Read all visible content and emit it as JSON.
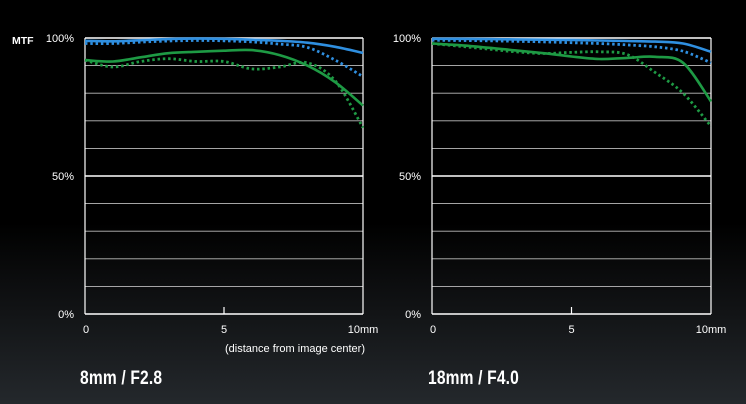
{
  "colors": {
    "sagittal": "#2f8fe0",
    "meridional": "#1e9a44",
    "grid": "#bdbdbd",
    "background": "#000000"
  },
  "chart_data": [
    {
      "type": "line",
      "ylabel": "MTF",
      "xlim": [
        0,
        10
      ],
      "ylim": [
        0,
        100
      ],
      "x_ticks": [
        "0",
        "5",
        "10mm"
      ],
      "y_ticks": [
        "0%",
        "50%",
        "100%"
      ],
      "xlabel": "(distance from image center)",
      "caption": "8mm / F2.8",
      "series": [
        {
          "style": "solid",
          "color": "#2f8fe0",
          "points": [
            [
              0,
              99
            ],
            [
              1,
              98.8
            ],
            [
              2,
              99.2
            ],
            [
              3,
              99.6
            ],
            [
              4,
              99.8
            ],
            [
              5,
              99.7
            ],
            [
              6,
              99.4
            ],
            [
              7,
              99
            ],
            [
              8,
              98.3
            ],
            [
              9,
              96.8
            ],
            [
              10,
              94.6
            ]
          ]
        },
        {
          "style": "dotted",
          "color": "#2f8fe0",
          "points": [
            [
              0,
              98
            ],
            [
              1,
              98
            ],
            [
              2,
              98.5
            ],
            [
              3,
              98.9
            ],
            [
              4,
              99.1
            ],
            [
              5,
              99
            ],
            [
              6,
              98.6
            ],
            [
              7,
              97.8
            ],
            [
              8,
              96.6
            ],
            [
              9,
              92
            ],
            [
              10,
              86
            ]
          ]
        },
        {
          "style": "solid",
          "color": "#1e9a44",
          "points": [
            [
              0,
              92
            ],
            [
              1,
              91.5
            ],
            [
              2,
              93
            ],
            [
              3,
              94.5
            ],
            [
              4,
              95
            ],
            [
              5,
              95.4
            ],
            [
              6,
              95.6
            ],
            [
              7,
              93.8
            ],
            [
              8,
              90
            ],
            [
              9,
              84
            ],
            [
              10,
              75.5
            ]
          ]
        },
        {
          "style": "dotted",
          "color": "#1e9a44",
          "points": [
            [
              0,
              92
            ],
            [
              1,
              89.5
            ],
            [
              2,
              91.5
            ],
            [
              3,
              92.5
            ],
            [
              4,
              91.5
            ],
            [
              5,
              91.5
            ],
            [
              6,
              88.8
            ],
            [
              7,
              89.5
            ],
            [
              8,
              91
            ],
            [
              9,
              84.5
            ],
            [
              10,
              67.5
            ]
          ]
        }
      ]
    },
    {
      "type": "line",
      "xlim": [
        0,
        10
      ],
      "ylim": [
        0,
        100
      ],
      "x_ticks": [
        "0",
        "5",
        "10mm"
      ],
      "y_ticks": [
        "0%",
        "50%",
        "100%"
      ],
      "caption": "18mm / F4.0",
      "series": [
        {
          "style": "solid",
          "color": "#2f8fe0",
          "points": [
            [
              0,
              99.7
            ],
            [
              1,
              99.7
            ],
            [
              2,
              99.6
            ],
            [
              3,
              99.5
            ],
            [
              4,
              99.4
            ],
            [
              5,
              99.3
            ],
            [
              6,
              99.1
            ],
            [
              7,
              98.9
            ],
            [
              8,
              98.7
            ],
            [
              9,
              98
            ],
            [
              10,
              95
            ]
          ]
        },
        {
          "style": "dotted",
          "color": "#2f8fe0",
          "points": [
            [
              0,
              99.2
            ],
            [
              1,
              99.1
            ],
            [
              2,
              99
            ],
            [
              3,
              98.8
            ],
            [
              4,
              98.6
            ],
            [
              5,
              98.3
            ],
            [
              6,
              98
            ],
            [
              7,
              97.5
            ],
            [
              8,
              96.8
            ],
            [
              9,
              95.2
            ],
            [
              10,
              91
            ]
          ]
        },
        {
          "style": "solid",
          "color": "#1e9a44",
          "points": [
            [
              0,
              98
            ],
            [
              1,
              97.4
            ],
            [
              2,
              96.5
            ],
            [
              3,
              95.5
            ],
            [
              4,
              94.5
            ],
            [
              5,
              93.3
            ],
            [
              6,
              92.4
            ],
            [
              7,
              92.8
            ],
            [
              8,
              93.2
            ],
            [
              9,
              91
            ],
            [
              10,
              77
            ]
          ]
        },
        {
          "style": "dotted",
          "color": "#1e9a44",
          "points": [
            [
              0,
              98
            ],
            [
              1,
              97
            ],
            [
              2,
              96
            ],
            [
              3,
              95
            ],
            [
              4,
              94.4
            ],
            [
              5,
              94.8
            ],
            [
              6,
              95
            ],
            [
              7,
              94
            ],
            [
              8,
              87.5
            ],
            [
              9,
              80
            ],
            [
              10,
              68
            ]
          ]
        }
      ]
    }
  ]
}
